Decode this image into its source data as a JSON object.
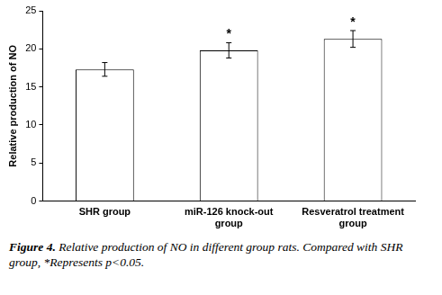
{
  "chart_data": {
    "type": "bar",
    "y_label": "Relative production of NO",
    "categories": [
      "SHR group",
      "miR-126 knock-out group",
      "Resveratrol treatment group"
    ],
    "values": [
      17.3,
      19.8,
      21.3
    ],
    "errors": [
      0.9,
      1.0,
      1.1
    ],
    "color": "#ffffff",
    "ylim": [
      0,
      25
    ],
    "yticks": [
      0,
      5,
      10,
      15,
      20,
      25
    ],
    "grid": false,
    "annotations": [
      {
        "category": "miR-126 knock-out group",
        "text": "*"
      },
      {
        "category": "Resveratrol treatment group",
        "text": "*"
      }
    ],
    "caption": {
      "label": "Figure 4.",
      "text": "Relative production of NO in different group rats. Compared with SHR group, *Represents p<0.05."
    }
  }
}
